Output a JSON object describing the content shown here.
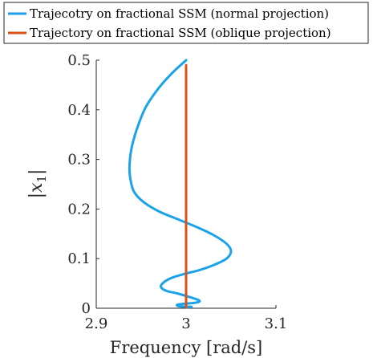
{
  "chart_data": {
    "type": "line",
    "xlabel": "Frequency [rad/s]",
    "ylabel": "|x_1|",
    "xlim": [
      2.9,
      3.1
    ],
    "ylim": [
      0,
      0.5
    ],
    "xticks": [
      "2.9",
      "3",
      "3.1"
    ],
    "yticks": [
      "0",
      "0.1",
      "0.2",
      "0.3",
      "0.4",
      "0.5"
    ],
    "grid": false,
    "legend_placement": "top",
    "series": [
      {
        "name": "Trajecotry on fractional SSM (normal projection)",
        "color": "#1aa3ea",
        "x": [
          3.0,
          2.985,
          2.97,
          2.955,
          2.945,
          2.939,
          2.937,
          2.938,
          2.942,
          2.952,
          2.97,
          2.99,
          3.01,
          3.03,
          3.045,
          3.05,
          3.045,
          3.032,
          3.015,
          3.0,
          2.985,
          2.975,
          2.972,
          2.978,
          2.99,
          3.005,
          3.015,
          3.01,
          2.998,
          2.99,
          2.992,
          3.0,
          3.006,
          3.002
        ],
        "y": [
          0.5,
          0.475,
          0.445,
          0.405,
          0.36,
          0.32,
          0.285,
          0.26,
          0.235,
          0.215,
          0.195,
          0.18,
          0.165,
          0.148,
          0.13,
          0.115,
          0.1,
          0.088,
          0.077,
          0.07,
          0.062,
          0.052,
          0.043,
          0.035,
          0.03,
          0.022,
          0.015,
          0.011,
          0.009,
          0.007,
          0.004,
          0.003,
          0.003,
          0.002
        ]
      },
      {
        "name": "Trajectory on fractional SSM (oblique projection)",
        "color": "#d95319",
        "x": [
          3.0,
          3.0
        ],
        "y": [
          0.002,
          0.49
        ]
      }
    ]
  }
}
